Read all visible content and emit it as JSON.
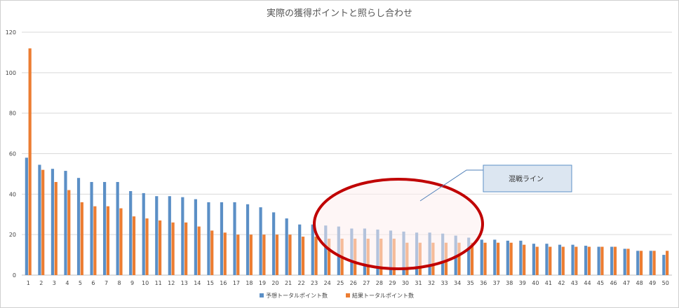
{
  "chart_data": {
    "type": "bar",
    "title": "実際の獲得ポイントと照らし合わせ",
    "xlabel": "",
    "ylabel": "",
    "ylim": [
      0,
      120
    ],
    "yticks": [
      0,
      20,
      40,
      60,
      80,
      100,
      120
    ],
    "grid": true,
    "legend_position": "bottom",
    "categories": [
      "1",
      "2",
      "3",
      "4",
      "5",
      "6",
      "7",
      "8",
      "9",
      "10",
      "11",
      "12",
      "13",
      "14",
      "15",
      "16",
      "17",
      "18",
      "19",
      "20",
      "21",
      "22",
      "23",
      "24",
      "25",
      "26",
      "27",
      "28",
      "29",
      "30",
      "31",
      "32",
      "33",
      "34",
      "35",
      "36",
      "37",
      "38",
      "39",
      "40",
      "41",
      "42",
      "43",
      "44",
      "45",
      "46",
      "47",
      "48",
      "49",
      "50"
    ],
    "series": [
      {
        "name": "予想トータルポイント数",
        "color": "#5b8fc6",
        "values": [
          58,
          54.5,
          52.5,
          51.5,
          48,
          46,
          46,
          46,
          41.5,
          40.5,
          39,
          39,
          38.5,
          37.5,
          36,
          36,
          36,
          35,
          33.5,
          31,
          28,
          25,
          25,
          24.5,
          24,
          23,
          23,
          22.5,
          22,
          21.5,
          21,
          21,
          20.5,
          19.5,
          18.5,
          17.5,
          17.5,
          17,
          17,
          15.5,
          15.5,
          15,
          15,
          14.5,
          14,
          14,
          13,
          12,
          12,
          10
        ]
      },
      {
        "name": "結果トータルポイント数",
        "color": "#ec7d32",
        "values": [
          112,
          52,
          46,
          42,
          36,
          34,
          34,
          33,
          29,
          28,
          27,
          26,
          26,
          24,
          22,
          21,
          20,
          20,
          20,
          20,
          20,
          19,
          19,
          18,
          18,
          18,
          18,
          18,
          18,
          16,
          16,
          16,
          16,
          16,
          16,
          16,
          16,
          16,
          15,
          14,
          14,
          14,
          14,
          14,
          14,
          14,
          13,
          12,
          12,
          12
        ]
      }
    ],
    "annotation": {
      "label": "混戦ライン",
      "box_color": "#dce6f1",
      "ellipse_stroke": "#c00000",
      "ellipse_fill": "#fdeeee"
    }
  }
}
